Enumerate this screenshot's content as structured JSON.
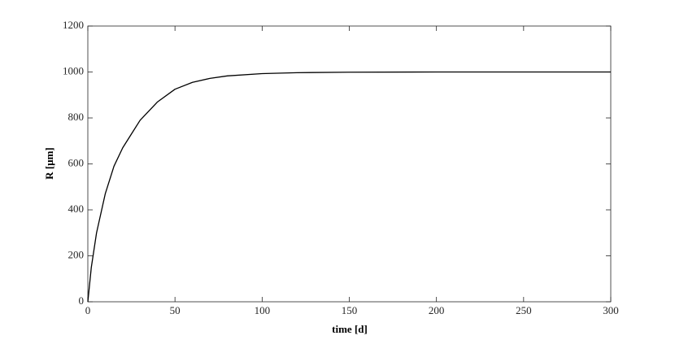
{
  "chart_data": {
    "type": "line",
    "x_label": "time [d]",
    "y_label": "R [μm]",
    "x": [
      0,
      2,
      5,
      10,
      15,
      20,
      25,
      30,
      40,
      50,
      60,
      70,
      80,
      100,
      120,
      150,
      200,
      250,
      300
    ],
    "series": [
      {
        "name": "R",
        "color": "#000000",
        "values": [
          0,
          150,
          300,
          470,
          590,
          670,
          730,
          790,
          870,
          925,
          955,
          972,
          983,
          993,
          997,
          999,
          1000,
          1000,
          1000
        ]
      }
    ],
    "xlim": [
      0,
      300
    ],
    "xticks": [
      0,
      50,
      100,
      150,
      200,
      250,
      300
    ],
    "ylim": [
      0,
      1200
    ],
    "yticks": [
      0,
      200,
      400,
      600,
      800,
      1000,
      1200
    ]
  }
}
